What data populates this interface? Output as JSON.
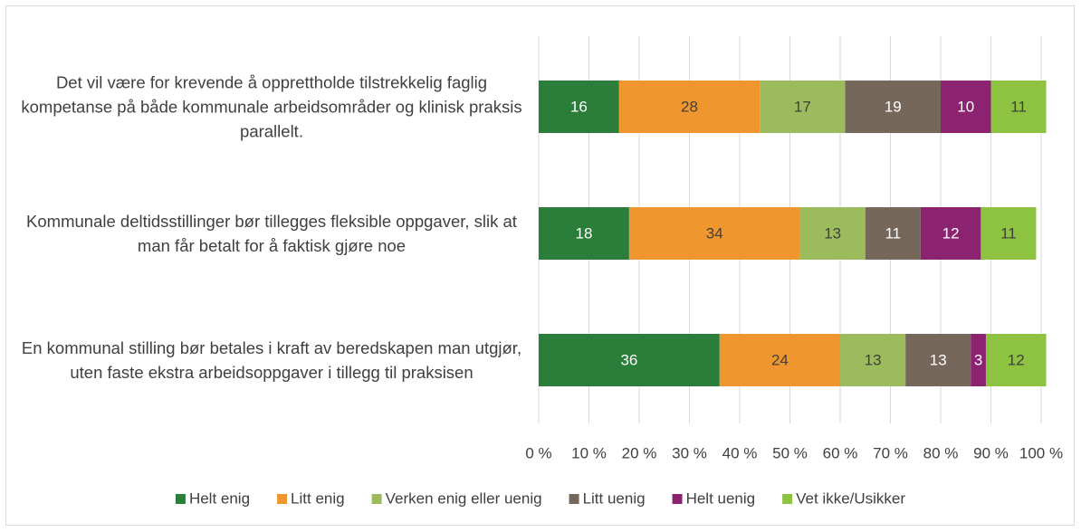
{
  "chart_data": {
    "type": "stacked_barh",
    "categories": [
      "Det vil være for krevende å opprettholde tilstrekkelig faglig kompetanse på både kommunale arbeidsområder og klinisk praksis parallelt.",
      "Kommunale deltidsstillinger bør tillegges fleksible oppgaver, slik at man får betalt for å faktisk gjøre noe",
      "En kommunal stilling bør betales i kraft av beredskapen man utgjør, uten faste ekstra arbeidsoppgaver i tillegg til praksisen"
    ],
    "series": [
      {
        "name": "Helt enig",
        "color": "#2b7d3a",
        "label_color": "#ffffff",
        "values": [
          16,
          18,
          36
        ]
      },
      {
        "name": "Litt enig",
        "color": "#f0962e",
        "label_color": "#404040",
        "values": [
          28,
          34,
          24
        ]
      },
      {
        "name": "Verken enig eller uenig",
        "color": "#9cbb5c",
        "label_color": "#404040",
        "values": [
          17,
          13,
          13
        ]
      },
      {
        "name": "Litt uenig",
        "color": "#75685b",
        "label_color": "#ffffff",
        "values": [
          19,
          11,
          13
        ]
      },
      {
        "name": "Helt uenig",
        "color": "#8c2370",
        "label_color": "#ffffff",
        "values": [
          10,
          12,
          3
        ]
      },
      {
        "name": "Vet ikke/Usikker",
        "color": "#8dc341",
        "label_color": "#404040",
        "values": [
          11,
          11,
          12
        ]
      }
    ],
    "xlim": [
      0,
      100
    ],
    "xticks": [
      {
        "value": 0,
        "label": "0 %"
      },
      {
        "value": 10,
        "label": "10 %"
      },
      {
        "value": 20,
        "label": "20 %"
      },
      {
        "value": 30,
        "label": "30 %"
      },
      {
        "value": 40,
        "label": "40 %"
      },
      {
        "value": 50,
        "label": "50 %"
      },
      {
        "value": 60,
        "label": "60 %"
      },
      {
        "value": 70,
        "label": "70 %"
      },
      {
        "value": 80,
        "label": "80 %"
      },
      {
        "value": 90,
        "label": "90 %"
      },
      {
        "value": 100,
        "label": "100 %"
      }
    ],
    "grid": true,
    "legend": "bottom"
  }
}
